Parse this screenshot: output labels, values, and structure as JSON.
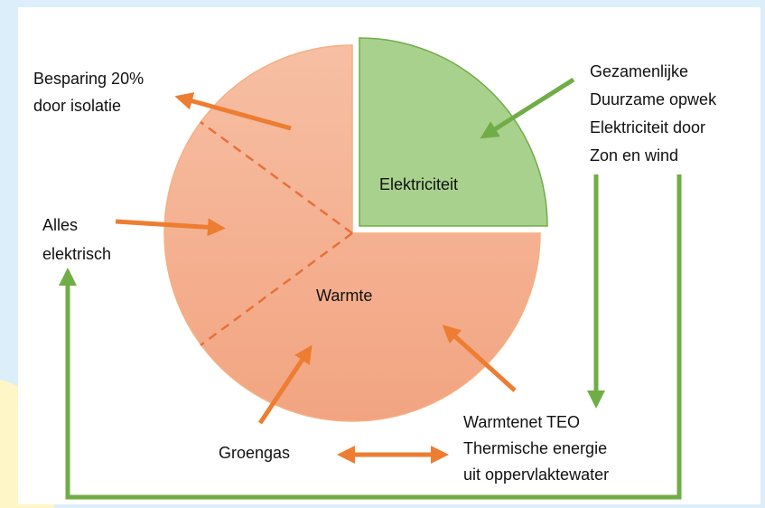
{
  "labels": {
    "savings": [
      "Besparing 20%",
      "door isolatie"
    ],
    "all_electric": [
      "Alles",
      "elektrisch"
    ],
    "electricity_slice": "Elektriciteit",
    "heat_slice": "Warmte",
    "shared_generation": [
      "Gezamenlijke",
      "Duurzame opwek",
      "Elektriciteit door",
      "Zon en wind"
    ],
    "heat_network": [
      "Warmtenet TEO",
      "Thermische energie",
      "uit oppervlaktewater"
    ],
    "green_gas": "Groengas"
  }
}
